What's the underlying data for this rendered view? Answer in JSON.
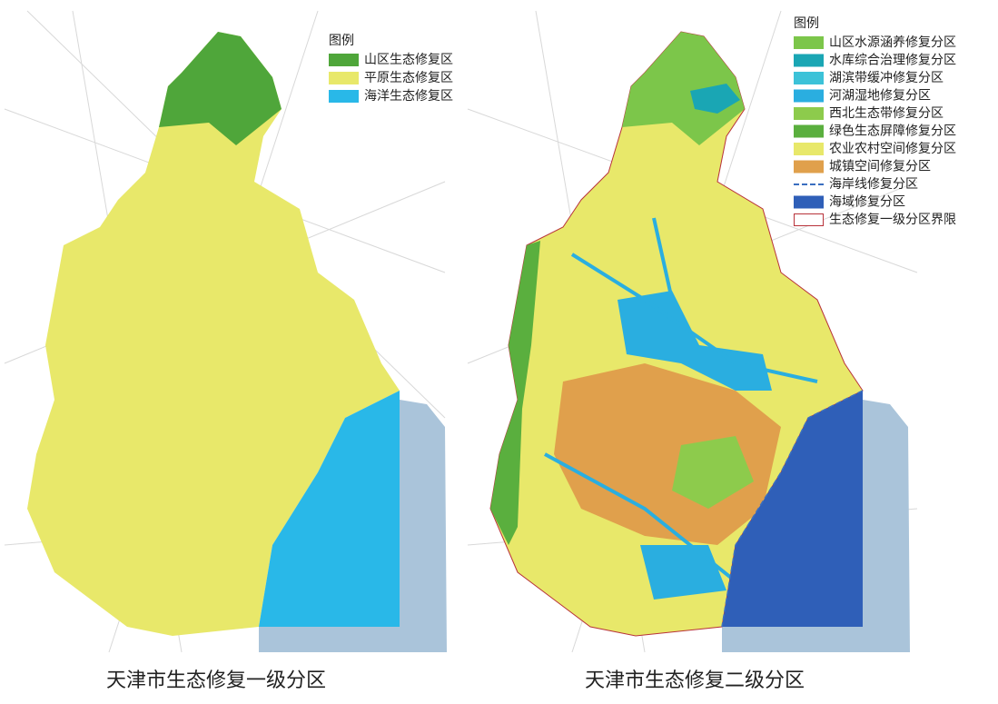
{
  "maps": [
    {
      "caption": "天津市生态修复一级分区",
      "legend": {
        "title": "图例",
        "items": [
          {
            "label": "山区生态修复区",
            "color": "#4fa63a"
          },
          {
            "label": "平原生态修复区",
            "color": "#e8e86a"
          },
          {
            "label": "海洋生态修复区",
            "color": "#29b8e8"
          }
        ]
      }
    },
    {
      "caption": "天津市生态修复二级分区",
      "legend": {
        "title": "图例",
        "items": [
          {
            "label": "山区水源涵养修复分区",
            "color": "#7cc64a"
          },
          {
            "label": "水库综合治理修复分区",
            "color": "#1aa6b4"
          },
          {
            "label": "湖滨带缓冲修复分区",
            "color": "#3cc2d8"
          },
          {
            "label": "河湖湿地修复分区",
            "color": "#2aaee0"
          },
          {
            "label": "西北生态带修复分区",
            "color": "#8dcb4c"
          },
          {
            "label": "绿色生态屏障修复分区",
            "color": "#5aaf3e"
          },
          {
            "label": "农业农村空间修复分区",
            "color": "#e8e86a"
          },
          {
            "label": "城镇空间修复分区",
            "color": "#e0a04c"
          },
          {
            "label": "海岸线修复分区",
            "color": "#3a6ec0",
            "style": "dash"
          },
          {
            "label": "海域修复分区",
            "color": "#2f5fb8"
          },
          {
            "label": "生态修复一级分区界限",
            "color": "#b8323a",
            "style": "outline"
          }
        ]
      }
    }
  ]
}
